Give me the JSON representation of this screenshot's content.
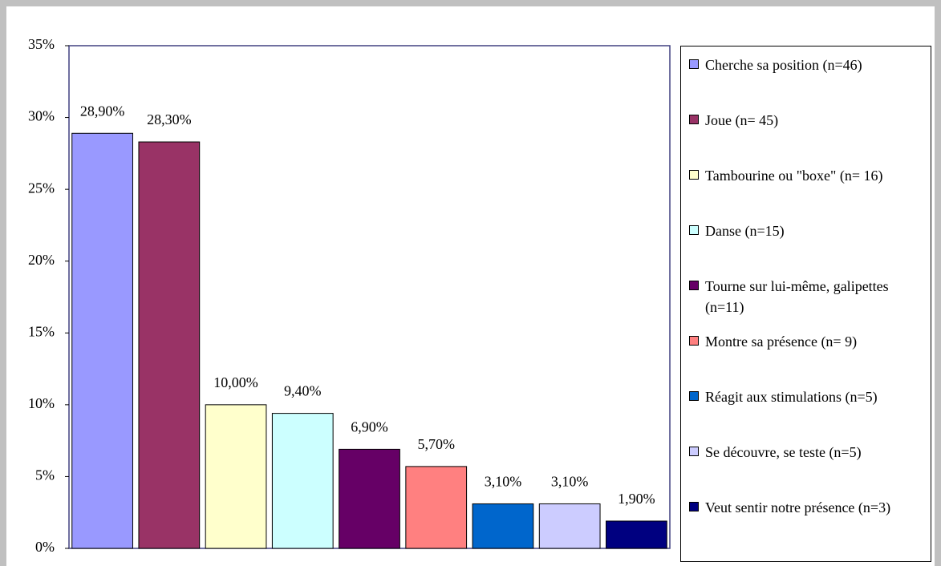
{
  "chart_data": {
    "type": "bar",
    "categories": [
      "Cherche sa position (n=46)",
      "Joue (n= 45)",
      "Tambourine ou \"boxe\" (n= 16)",
      "Danse (n=15)",
      "Tourne sur lui-même, galipettes (n=11)",
      "Montre sa présence (n= 9)",
      "Réagit aux stimulations (n=5)",
      "Se découvre, se teste (n=5)",
      "Veut sentir notre présence (n=3)"
    ],
    "values": [
      28.9,
      28.3,
      10.0,
      9.4,
      6.9,
      5.7,
      3.1,
      3.1,
      1.9
    ],
    "value_labels": [
      "28,90%",
      "28,30%",
      "10,00%",
      "9,40%",
      "6,90%",
      "5,70%",
      "3,10%",
      "3,10%",
      "1,90%"
    ],
    "colors": [
      "#9999ff",
      "#993366",
      "#ffffcc",
      "#ccffff",
      "#660066",
      "#ff8080",
      "#0066cc",
      "#ccccff",
      "#000080"
    ],
    "ylim": [
      0,
      35
    ],
    "yticks": [
      {
        "value": 0,
        "label": "0%"
      },
      {
        "value": 5,
        "label": "5%"
      },
      {
        "value": 10,
        "label": "10%"
      },
      {
        "value": 15,
        "label": "15%"
      },
      {
        "value": 20,
        "label": "20%"
      },
      {
        "value": 25,
        "label": "25%"
      },
      {
        "value": 30,
        "label": "30%"
      },
      {
        "value": 35,
        "label": "35%"
      }
    ],
    "legend": "right"
  }
}
